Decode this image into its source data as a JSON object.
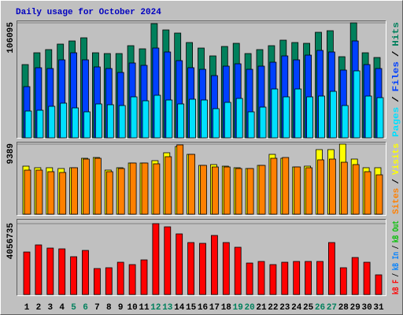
{
  "title": "Daily usage for October 2024",
  "legend_separator": "/",
  "chart_data": [
    {
      "type": "bar",
      "series": [
        {
          "name": "Pages",
          "color": "#00e0ff",
          "values": [
            24710,
            25430,
            29070,
            31980,
            27610,
            23980,
            31250,
            30520,
            29790,
            37790,
            34150,
            39240,
            34880,
            31250,
            35610,
            34880,
            26890,
            32700,
            36330,
            23980,
            28340,
            45060,
            37790,
            45060,
            37790,
            38520,
            42880,
            29790,
            61770,
            38520,
            37060
          ]
        },
        {
          "name": "Files",
          "color": "#0040ff",
          "values": [
            47240,
            64680,
            63950,
            71940,
            78480,
            71940,
            65400,
            63950,
            60320,
            69040,
            66860,
            82840,
            79210,
            71220,
            64680,
            63220,
            57410,
            66130,
            68310,
            63220,
            66130,
            69760,
            75580,
            71940,
            76300,
            80660,
            79210,
            62500,
            89380,
            67580,
            63950
          ]
        },
        {
          "name": "Hits",
          "color": "#00805c",
          "values": [
            67580,
            78480,
            81390,
            86480,
            89380,
            92290,
            78480,
            77760,
            77760,
            85020,
            82120,
            105370,
            99560,
            96650,
            87930,
            82840,
            75580,
            84300,
            87200,
            77760,
            81390,
            85020,
            90110,
            87930,
            87200,
            97380,
            98830,
            74850,
            106095,
            78480,
            74120
          ]
        }
      ],
      "ylim": [
        0,
        106095
      ],
      "yticks": [
        106095
      ]
    },
    {
      "type": "bar",
      "series": [
        {
          "name": "Sites",
          "color": "#ff8000",
          "values": [
            5908,
            5908,
            5697,
            5592,
            6225,
            7385,
            7491,
            5697,
            6119,
            6858,
            6858,
            6752,
            7702,
            9284,
            8018,
            6541,
            6330,
            6330,
            6119,
            6119,
            6541,
            7491,
            7596,
            6330,
            6225,
            7280,
            7385,
            6963,
            6647,
            5697,
            5275
          ]
        },
        {
          "name": "Visits",
          "color": "#ffff00",
          "values": [
            6436,
            6225,
            6225,
            6119,
            6225,
            7491,
            7596,
            5908,
            6225,
            6858,
            6858,
            7174,
            8229,
            9073,
            8018,
            6541,
            6647,
            6436,
            6225,
            6119,
            6541,
            8018,
            7491,
            6330,
            6436,
            8651,
            8651,
            9389,
            7385,
            6225,
            6225
          ]
        }
      ],
      "ylim": [
        0,
        9389
      ],
      "yticks": [
        9389
      ]
    },
    {
      "type": "bar",
      "categories": [
        "1",
        "2",
        "3",
        "4",
        "5",
        "6",
        "7",
        "8",
        "9",
        "10",
        "11",
        "12",
        "13",
        "14",
        "15",
        "16",
        "17",
        "18",
        "19",
        "20",
        "21",
        "22",
        "23",
        "24",
        "25",
        "26",
        "27",
        "28",
        "29",
        "30",
        "31"
      ],
      "category_colors": [
        "#000000",
        "#000000",
        "#000000",
        "#000000",
        "#00805c",
        "#00805c",
        "#000000",
        "#000000",
        "#000000",
        "#000000",
        "#000000",
        "#00805c",
        "#00805c",
        "#000000",
        "#000000",
        "#000000",
        "#000000",
        "#000000",
        "#00805c",
        "#00805c",
        "#000000",
        "#000000",
        "#000000",
        "#000000",
        "#000000",
        "#00805c",
        "#00805c",
        "#000000",
        "#000000",
        "#000000",
        "#000000"
      ],
      "series": [
        {
          "name": "kB F",
          "color": "#ff0000",
          "values": [
            2434000,
            2840000,
            2659000,
            2614000,
            2164000,
            2524000,
            1487000,
            1533000,
            1848000,
            1713000,
            1983000,
            4056735,
            3876000,
            3471000,
            2975000,
            2930000,
            3381000,
            2975000,
            2705000,
            1803000,
            1893000,
            1713000,
            1848000,
            1893000,
            1893000,
            1893000,
            2975000,
            1533000,
            2119000,
            1848000,
            1127000
          ]
        }
      ],
      "legend_only": [
        {
          "name": "kB In",
          "color": "#0080ff"
        },
        {
          "name": "kB Out",
          "color": "#00c000"
        }
      ],
      "ylim": [
        0,
        4056735
      ],
      "yticks": [
        4056735
      ]
    }
  ]
}
